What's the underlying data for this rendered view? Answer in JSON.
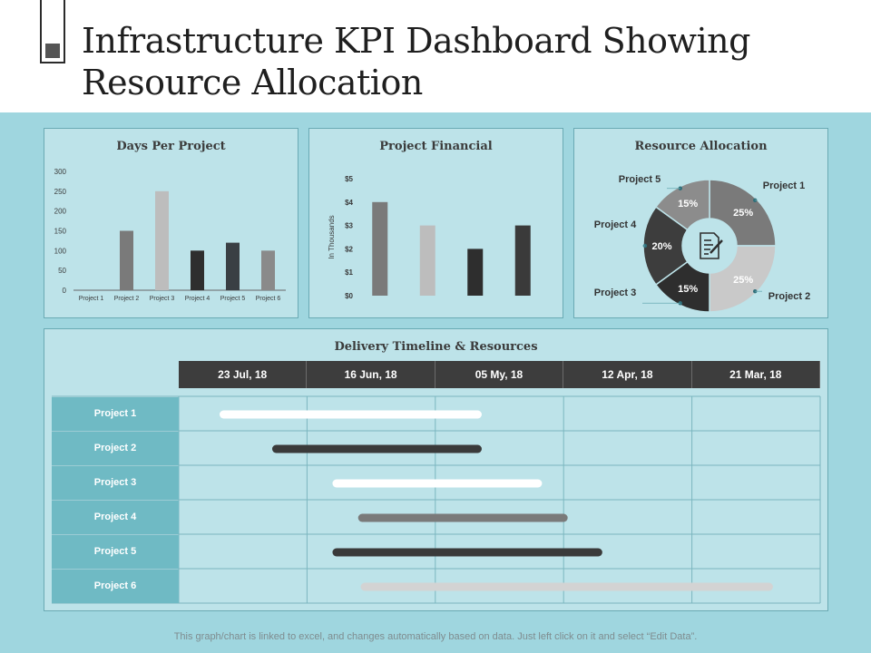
{
  "title": "Infrastructure KPI Dashboard Showing Resource Allocation",
  "footer": "This graph/chart is linked to excel, and changes automatically based on data. Just left click on it and select “Edit Data”.",
  "colors": {
    "background": "#9fd6df",
    "panel": "#bde3e9",
    "dark": "#3d3d3d",
    "label_teal": "#6fbac4"
  },
  "chart_data": [
    {
      "type": "bar",
      "title": "Days Per Project",
      "categories": [
        "Project 1",
        "Project 2",
        "Project 3",
        "Project 4",
        "Project 5",
        "Project 6"
      ],
      "values": [
        0,
        150,
        250,
        100,
        120,
        100
      ],
      "colors": [
        "#7a7a7a",
        "#7a7a7a",
        "#bdbdbd",
        "#2e2e2e",
        "#3a3f44",
        "#8a8a8a"
      ],
      "ylim": [
        0,
        300
      ],
      "yticks": [
        "0",
        "50",
        "100",
        "150",
        "200",
        "250",
        "300"
      ],
      "xlabel": "",
      "ylabel": ""
    },
    {
      "type": "bar",
      "title": "Project Financial",
      "categories": [
        "",
        "",
        "",
        ""
      ],
      "values": [
        4,
        3,
        2,
        3
      ],
      "colors": [
        "#7a7a7a",
        "#bdbdbd",
        "#2e2e2e",
        "#3a3a3a"
      ],
      "ylim": [
        0,
        5
      ],
      "yticks": [
        "$0",
        "$1",
        "$2",
        "$3",
        "$4",
        "$5"
      ],
      "ylabel": "In Thousands"
    },
    {
      "type": "pie",
      "title": "Resource Allocation",
      "labels": [
        "Project 1",
        "Project 2",
        "Project 3",
        "Project 4",
        "Project 5"
      ],
      "values": [
        25,
        25,
        15,
        20,
        15
      ],
      "value_labels": [
        "25%",
        "25%",
        "15%",
        "20%",
        "15%"
      ],
      "colors": [
        "#7a7a7a",
        "#c9c9c9",
        "#2e2e2e",
        "#3d3d3d",
        "#8c8c8c"
      ]
    },
    {
      "type": "table",
      "title": "Delivery Timeline & Resources",
      "columns": [
        "23 Jul, 18",
        "16 Jun, 18",
        "05 My, 18",
        "12 Apr, 18",
        "21 Mar, 18"
      ],
      "rows": [
        {
          "label": "Project 1",
          "start": 0.35,
          "end": 2.33,
          "color": "#ffffff"
        },
        {
          "label": "Project 2",
          "start": 0.76,
          "end": 2.33,
          "color": "#3a3a3a"
        },
        {
          "label": "Project 3",
          "start": 1.23,
          "end": 2.8,
          "color": "#ffffff"
        },
        {
          "label": "Project 4",
          "start": 1.43,
          "end": 3.0,
          "color": "#7a7a7a"
        },
        {
          "label": "Project 5",
          "start": 1.23,
          "end": 3.27,
          "color": "#3a3a3a"
        },
        {
          "label": "Project 6",
          "start": 1.45,
          "end": 4.6,
          "color": "#d3d3d3"
        }
      ]
    }
  ]
}
